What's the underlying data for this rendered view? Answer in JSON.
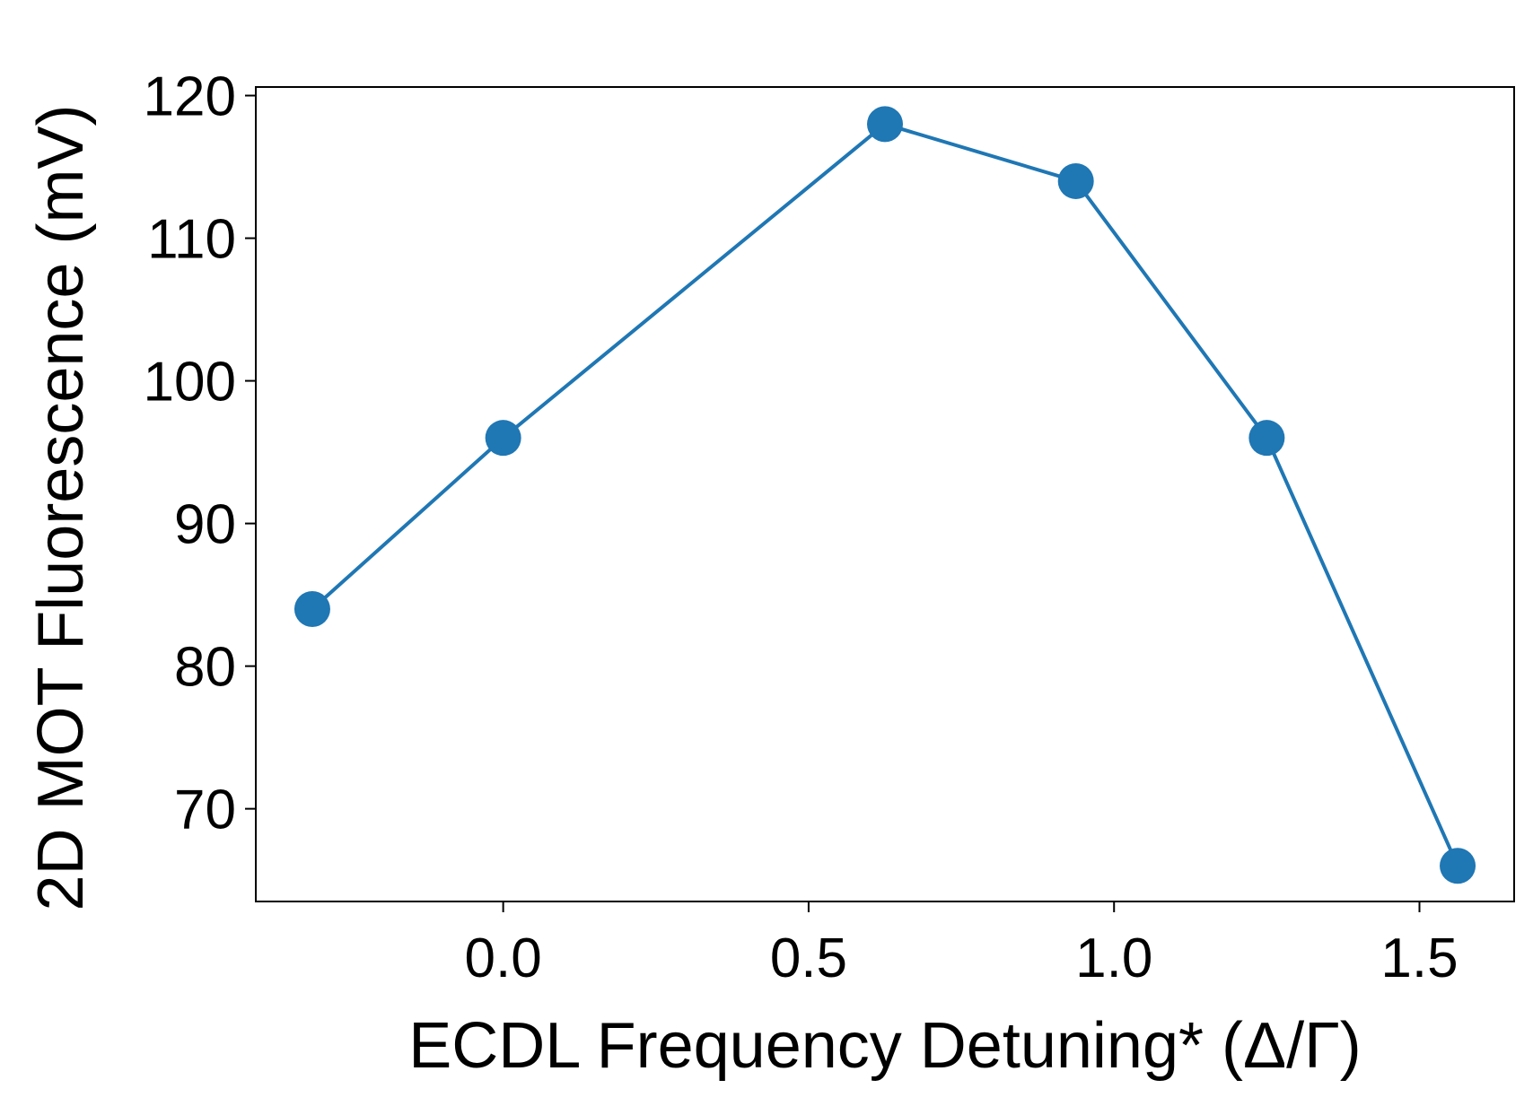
{
  "chart_data": {
    "type": "line",
    "title": "",
    "xlabel": "ECDL Frequency Detuning* (Δ/Γ)",
    "ylabel": "2D MOT Fluorescence (mV)",
    "xlim": [
      -0.405,
      1.655
    ],
    "ylim": [
      63.5,
      120.6
    ],
    "xticks": [
      0.0,
      0.5,
      1.0,
      1.5
    ],
    "xtick_labels": [
      "0.0",
      "0.5",
      "1.0",
      "1.5"
    ],
    "yticks": [
      70,
      80,
      90,
      100,
      110,
      120
    ],
    "ytick_labels": [
      "70",
      "80",
      "90",
      "100",
      "110",
      "120"
    ],
    "grid": false,
    "series": [
      {
        "color": "#1f77b4",
        "marker": "circle",
        "x": [
          -0.3125,
          0.0,
          0.625,
          0.9375,
          1.25,
          1.5625
        ],
        "y": [
          84,
          96,
          118,
          114,
          96,
          66
        ]
      }
    ]
  }
}
